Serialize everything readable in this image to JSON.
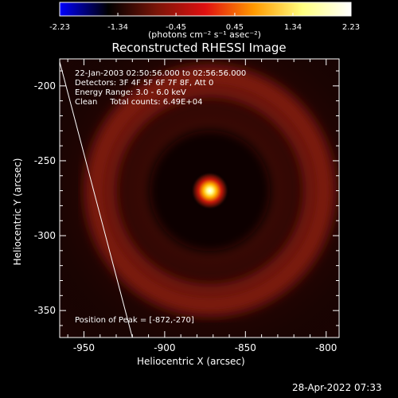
{
  "colorbar": {
    "ticks": [
      "-2.23",
      "-1.34",
      "-0.45",
      "0.45",
      "1.34",
      "2.23"
    ],
    "tick_values": [
      -2.23,
      -1.34,
      -0.45,
      0.45,
      1.34,
      2.23
    ],
    "range": [
      -2.23,
      2.23
    ],
    "units": "(photons cm⁻² s⁻¹ asec⁻²)",
    "colormap": [
      "#0000ff",
      "#000000",
      "#7a1508",
      "#e01010",
      "#ff9a00",
      "#ffff80",
      "#ffffff"
    ]
  },
  "chart_data": {
    "type": "heatmap",
    "title": "Reconstructed RHESSI Image",
    "xlabel": "Heliocentric X (arcsec)",
    "ylabel": "Heliocentric Y (arcsec)",
    "xlim": [
      -965,
      -792
    ],
    "ylim": [
      -368,
      -182
    ],
    "x_ticks": [
      -950,
      -900,
      -850,
      -800
    ],
    "y_ticks": [
      -200,
      -250,
      -300,
      -350
    ],
    "x_tick_labels": [
      "-950",
      "-900",
      "-850",
      "-800"
    ],
    "y_tick_labels": [
      "-200",
      "-250",
      "-300",
      "-350"
    ],
    "peak": {
      "x": -872,
      "y": -270
    },
    "ring": {
      "center_x": -872,
      "center_y": -270,
      "radius_arcsec": 68
    },
    "limb": [
      {
        "x": -965,
        "y": -184
      },
      {
        "x": -920,
        "y": -368
      }
    ],
    "annotations": {
      "time_range": "22-Jan-2003 02:50:56.000 to 02:56:56.000",
      "detectors": "Detectors: 3F 4F 5F 6F 7F 8F, Att 0",
      "energy": "Energy Range: 3.0 - 6.0 keV",
      "clean": "Clean     Total counts: 6.49E+04",
      "peak_label": "Position of Peak = [-872,-270]"
    }
  },
  "footer": {
    "timestamp": "28-Apr-2022 07:33"
  }
}
